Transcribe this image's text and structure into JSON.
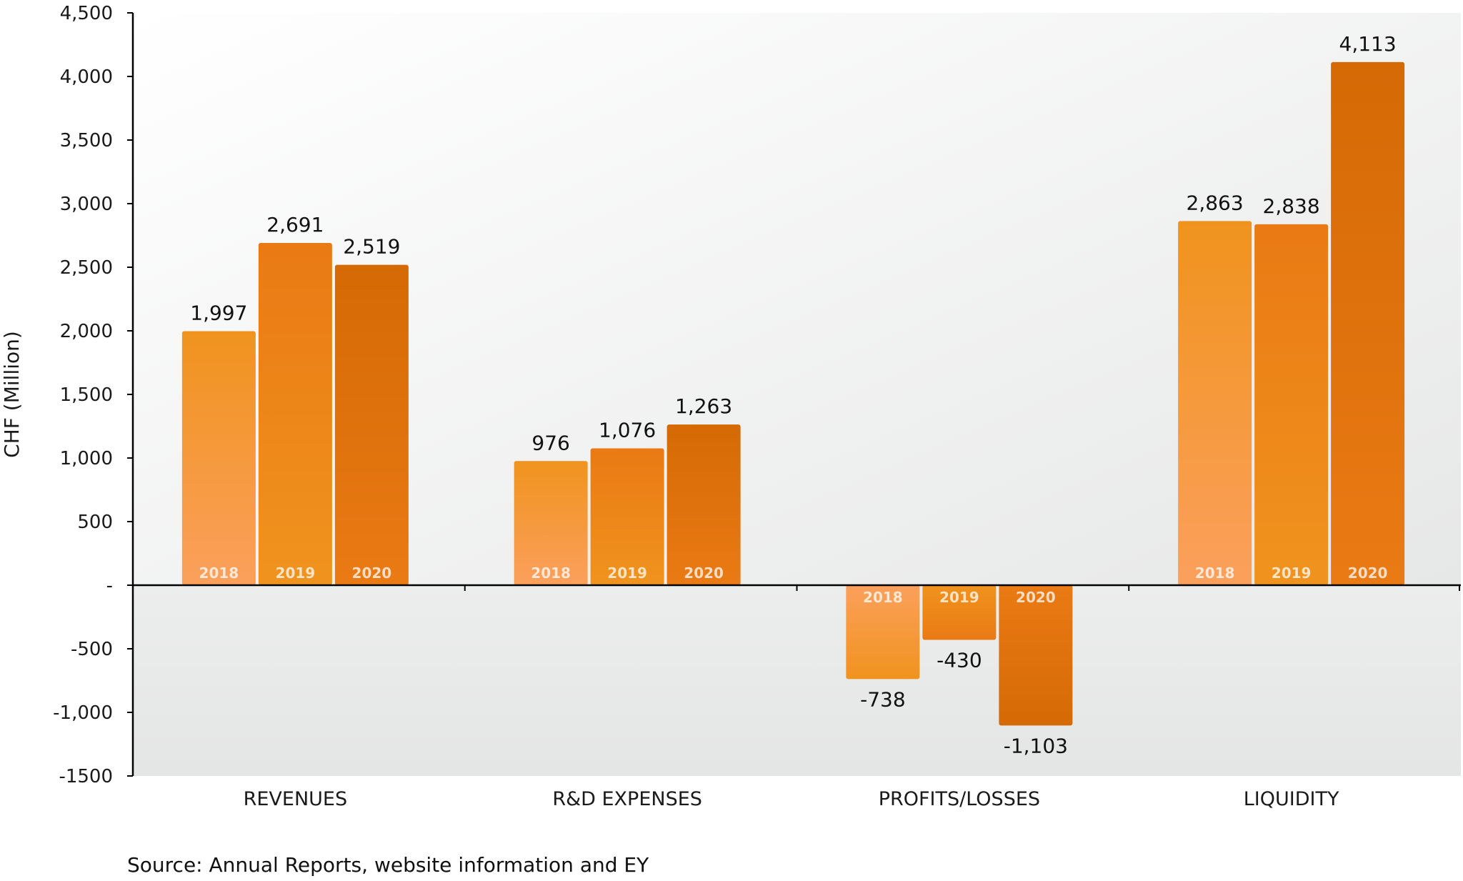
{
  "chart_data": {
    "type": "bar",
    "categories": [
      "REVENUES",
      "R&D EXPENSES",
      "PROFITS/LOSSES",
      "LIQUIDITY"
    ],
    "series": [
      {
        "name": "2018",
        "values": [
          1997,
          976,
          -738,
          2863
        ]
      },
      {
        "name": "2019",
        "values": [
          2691,
          1076,
          -430,
          2838
        ]
      },
      {
        "name": "2020",
        "values": [
          2519,
          1263,
          -1103,
          4113
        ]
      }
    ],
    "value_labels": [
      [
        "1,997",
        "976",
        "-738",
        "2,863"
      ],
      [
        "2,691",
        "1,076",
        "-430",
        "2,838"
      ],
      [
        "2,519",
        "1,263",
        "-1,103",
        "4,113"
      ]
    ],
    "ylabel": "CHF (Million)",
    "ylim": [
      -1500,
      4500
    ],
    "yticks": [
      4500,
      4000,
      3500,
      3000,
      2500,
      2000,
      1500,
      1000,
      500,
      0,
      -500,
      -1000,
      -1500
    ],
    "ytick_labels": [
      "4,500",
      "4,000",
      "3,500",
      "3,000",
      "2,500",
      "2,000",
      "1,500",
      "1,000",
      "500",
      "-",
      "-500",
      "-1,000",
      "-1500"
    ],
    "grid": false,
    "legend": "year labels inside bars",
    "colors": {
      "2018": "#f0931e",
      "2019": "#ea7a14",
      "2020": "#d56a05",
      "2018_light": "#fba05c",
      "2019_light": "#f0931e",
      "2020_light": "#ea7a14"
    }
  },
  "source_note": "Source: Annual Reports, website information and EY"
}
